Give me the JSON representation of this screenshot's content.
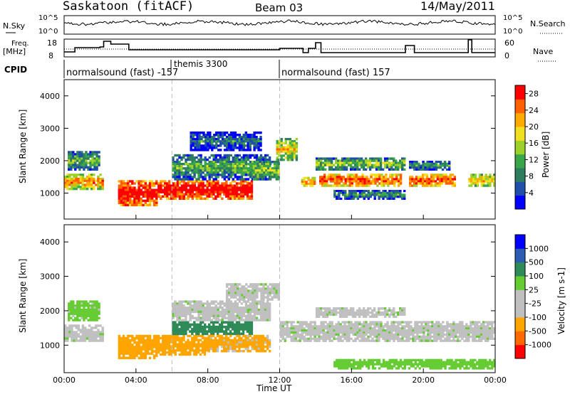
{
  "header": {
    "station": "Saskatoon (fitACF)",
    "beam": "Beam 03",
    "date": "14/May/2011"
  },
  "noise_panel": {
    "left_label": "N.Sky",
    "right_label": "N.Search",
    "left_ticks": [
      "10^5",
      "10^0"
    ],
    "right_ticks": [
      "10^5",
      "10^0"
    ]
  },
  "freq_panel": {
    "left_label_1": "Freq.",
    "left_label_2": "[MHz]",
    "right_label": "Nave",
    "left_ticks": [
      "18",
      "8"
    ],
    "right_ticks": [
      "60",
      "0"
    ]
  },
  "cpid": {
    "label": "CPID",
    "segments": [
      {
        "text": "normalsound (fast) -157",
        "start_hour": 0
      },
      {
        "text": "themis 3300",
        "start_hour": 6
      },
      {
        "text": "normalsound (fast) 157",
        "start_hour": 12
      }
    ]
  },
  "xaxis": {
    "label": "Time UT",
    "ticks": [
      "00:00",
      "04:00",
      "08:00",
      "12:00",
      "16:00",
      "20:00",
      "00:00"
    ]
  },
  "colors": {
    "power": [
      "#0000ff",
      "#1f4fa8",
      "#2e7d5e",
      "#3aa64a",
      "#9cd12a",
      "#f0e020",
      "#ffaa00",
      "#ff6000",
      "#ff0000"
    ],
    "velocity": [
      "#ff0000",
      "#ff6a00",
      "#ffa500",
      "#c0c0c0",
      "#c0c0c0",
      "#66cc33",
      "#2e8b57",
      "#2b5db3",
      "#0000ff"
    ]
  },
  "chart_data": [
    {
      "type": "heatmap",
      "title": "Power",
      "ylabel": "Slant Range [km]",
      "xlabel": "Time UT",
      "xlim": [
        0,
        24
      ],
      "ylim": [
        200,
        4500
      ],
      "yticks": [
        1000,
        2000,
        3000,
        4000
      ],
      "colorbar_label": "Power [dB]",
      "colorbar_ticks": [
        4,
        8,
        12,
        16,
        20,
        24,
        28
      ],
      "colorbar_range": [
        0,
        30
      ],
      "x_unit": "hour UT",
      "bands": [
        {
          "t0": 0.0,
          "t1": 2.2,
          "r0": 1100,
          "r1": 1600,
          "value": 20
        },
        {
          "t0": 0.2,
          "t1": 2.0,
          "r0": 1700,
          "r1": 2300,
          "value": 10
        },
        {
          "t0": 3.0,
          "t1": 5.2,
          "r0": 600,
          "r1": 1400,
          "value": 28
        },
        {
          "t0": 5.2,
          "t1": 10.5,
          "r0": 800,
          "r1": 1400,
          "value": 28
        },
        {
          "t0": 6.0,
          "t1": 11.5,
          "r0": 1400,
          "r1": 2200,
          "value": 9
        },
        {
          "t0": 7.0,
          "t1": 11.0,
          "r0": 2300,
          "r1": 2900,
          "value": 5
        },
        {
          "t0": 10.5,
          "t1": 12.0,
          "r0": 1400,
          "r1": 2000,
          "value": 12
        },
        {
          "t0": 11.8,
          "t1": 13.0,
          "r0": 2000,
          "r1": 2700,
          "value": 16
        },
        {
          "t0": 13.2,
          "t1": 14.0,
          "r0": 1200,
          "r1": 1500,
          "value": 22
        },
        {
          "t0": 14.2,
          "t1": 18.8,
          "r0": 1200,
          "r1": 1600,
          "value": 24
        },
        {
          "t0": 14.0,
          "t1": 19.0,
          "r0": 1700,
          "r1": 2100,
          "value": 12
        },
        {
          "t0": 15.0,
          "t1": 19.0,
          "r0": 800,
          "r1": 1100,
          "value": 8
        },
        {
          "t0": 19.2,
          "t1": 21.8,
          "r0": 1200,
          "r1": 1600,
          "value": 24
        },
        {
          "t0": 19.2,
          "t1": 21.5,
          "r0": 1700,
          "r1": 2000,
          "value": 8
        },
        {
          "t0": 22.5,
          "t1": 24.0,
          "r0": 1200,
          "r1": 1600,
          "value": 18
        }
      ]
    },
    {
      "type": "heatmap",
      "title": "Velocity",
      "ylabel": "Slant Range [km]",
      "xlabel": "Time UT",
      "xlim": [
        0,
        24
      ],
      "ylim": [
        200,
        4500
      ],
      "yticks": [
        1000,
        2000,
        3000,
        4000
      ],
      "colorbar_label": "Velocity [m s-1]",
      "colorbar_ticks": [
        "1000",
        "500",
        "100",
        "25",
        "-25",
        "-100",
        "-500",
        "-1000"
      ],
      "x_unit": "hour UT",
      "bands": [
        {
          "t0": 0.0,
          "t1": 2.2,
          "r0": 1100,
          "r1": 1600,
          "value": 0
        },
        {
          "t0": 0.2,
          "t1": 2.0,
          "r0": 1700,
          "r1": 2300,
          "value": 50
        },
        {
          "t0": 3.0,
          "t1": 5.2,
          "r0": 600,
          "r1": 1300,
          "value": -300
        },
        {
          "t0": 5.2,
          "t1": 8.0,
          "r0": 700,
          "r1": 1300,
          "value": -300
        },
        {
          "t0": 6.0,
          "t1": 10.5,
          "r0": 1300,
          "r1": 1700,
          "value": 300
        },
        {
          "t0": 8.0,
          "t1": 11.5,
          "r0": 800,
          "r1": 1300,
          "value": -200
        },
        {
          "t0": 6.0,
          "t1": 11.5,
          "r0": 1700,
          "r1": 2300,
          "value": 0
        },
        {
          "t0": 9.0,
          "t1": 12.0,
          "r0": 2300,
          "r1": 2800,
          "value": 0
        },
        {
          "t0": 12.0,
          "t1": 24.0,
          "r0": 1100,
          "r1": 1700,
          "value": 0
        },
        {
          "t0": 14.0,
          "t1": 19.0,
          "r0": 1800,
          "r1": 2100,
          "value": 0
        },
        {
          "t0": 15.0,
          "t1": 24.0,
          "r0": 300,
          "r1": 600,
          "value": 60
        }
      ]
    }
  ]
}
